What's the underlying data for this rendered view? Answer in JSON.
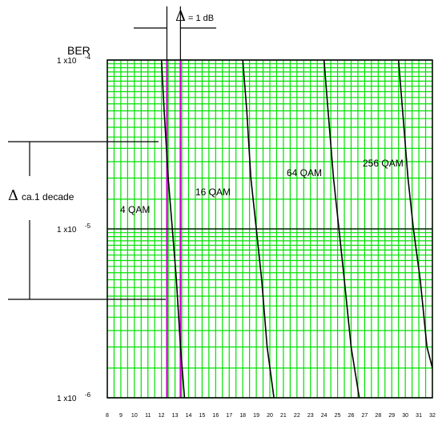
{
  "chart_data": {
    "type": "line",
    "title": "",
    "ylabel": "BER",
    "xlabel": "",
    "xlim": [
      8,
      32
    ],
    "x_ticks": [
      "8",
      "9",
      "10",
      "11",
      "12",
      "13",
      "14",
      "15",
      "16",
      "17",
      "18",
      "19",
      "20",
      "21",
      "22",
      "23",
      "24",
      "25",
      "26",
      "27",
      "28",
      "29",
      "30",
      "31",
      "32"
    ],
    "y_scale": "log",
    "ylim": [
      1e-06,
      0.0001
    ],
    "y_ticks": [
      {
        "value": 0.0001,
        "base": "1 x10",
        "exp": "-4"
      },
      {
        "value": 1e-05,
        "base": "1 x10",
        "exp": "-5"
      },
      {
        "value": 1e-06,
        "base": "1 x10",
        "exp": "-6"
      }
    ],
    "grid": true,
    "grid_color": "#00e000",
    "reference_band": {
      "x": [
        12.4,
        13.4
      ],
      "color": "#cc00cc"
    },
    "series": [
      {
        "name": "4 QAM",
        "x": [
          12.0,
          12.2,
          12.5,
          12.8,
          13.1,
          13.4,
          13.7
        ],
        "y": [
          0.0001,
          5e-05,
          2e-05,
          1e-05,
          5e-06,
          2e-06,
          1e-06
        ]
      },
      {
        "name": "16 QAM",
        "x": [
          18.0,
          18.3,
          18.6,
          19.0,
          19.4,
          19.8,
          20.3
        ],
        "y": [
          0.0001,
          5e-05,
          2e-05,
          1e-05,
          5e-06,
          2e-06,
          1e-06
        ]
      },
      {
        "name": "64 QAM",
        "x": [
          24.0,
          24.3,
          24.7,
          25.1,
          25.5,
          26.0,
          26.6
        ],
        "y": [
          0.0001,
          5e-05,
          2e-05,
          1e-05,
          5e-06,
          2e-06,
          1e-06
        ]
      },
      {
        "name": "256 QAM",
        "x": [
          29.5,
          29.8,
          30.2,
          30.6,
          31.1,
          31.6,
          32.0
        ],
        "y": [
          0.0001,
          5e-05,
          2e-05,
          1e-05,
          5e-06,
          2e-06,
          1.5e-06
        ]
      }
    ],
    "annotations": {
      "delta_top": {
        "symbol": "Δ",
        "text": "= 1 dB"
      },
      "delta_left": {
        "symbol": "Δ",
        "text": "ca.1  decade"
      }
    },
    "line_color": "#000000"
  }
}
